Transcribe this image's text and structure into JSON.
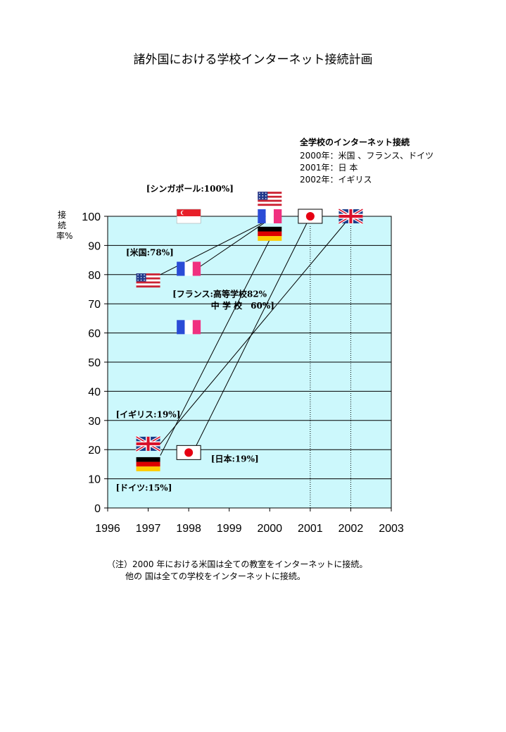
{
  "title": "諸外国における学校インターネット接続計画",
  "legend": {
    "title": "全学校のインターネット接続",
    "lines": [
      "2000年：米国 、フランス、ドイツ",
      "2001年：日 本",
      "2002年：イギリス"
    ]
  },
  "note": {
    "line1": "（注）2000 年における米国は全ての教室をインターネットに接続。",
    "line2": "他の 国は全ての学校をインターネットに接続。"
  },
  "colors": {
    "plot_background": "#ccf8fc",
    "usa_red": "#cc2233",
    "usa_blue": "#223a8c",
    "france_blue": "#2a4bd6",
    "france_red": "#f03080",
    "germany_red": "#dd0000",
    "germany_gold": "#ffcc00",
    "japan_red": "#e60012",
    "uk_blue": "#1a3d8a",
    "uk_red": "#d8102a",
    "singapore_red": "#e8202a"
  },
  "chart_data": {
    "type": "scatter",
    "title": "諸外国における学校インターネット接続計画",
    "xlabel": "",
    "ylabel": "接続率%",
    "xlim": [
      1996,
      2003
    ],
    "ylim": [
      0,
      100
    ],
    "xticks": [
      "1996",
      "1997",
      "1998",
      "1999",
      "2000",
      "2001",
      "2002",
      "2003"
    ],
    "yticks": [
      "0",
      "10",
      "20",
      "30",
      "40",
      "50",
      "60",
      "70",
      "80",
      "90",
      "100"
    ],
    "grid": "horizontal",
    "flags": [
      {
        "country": "singapore",
        "icon": "singapore-flag-icon",
        "x": 1998,
        "y": 100
      },
      {
        "country": "usa",
        "icon": "usa-flag-icon",
        "x": 1997,
        "y": 78
      },
      {
        "country": "france",
        "icon": "france-flag-icon",
        "x": 1998,
        "y": 82
      },
      {
        "country": "france",
        "icon": "france-flag-icon",
        "x": 1998,
        "y": 62
      },
      {
        "country": "uk",
        "icon": "uk-flag-icon",
        "x": 1997,
        "y": 22
      },
      {
        "country": "germany",
        "icon": "germany-flag-icon",
        "x": 1997,
        "y": 15
      },
      {
        "country": "japan",
        "icon": "japan-flag-icon",
        "x": 1998,
        "y": 19
      },
      {
        "country": "usa",
        "icon": "usa-flag-icon",
        "x": 2000,
        "y": 106
      },
      {
        "country": "france",
        "icon": "france-flag-icon",
        "x": 2000,
        "y": 100
      },
      {
        "country": "germany",
        "icon": "germany-flag-icon",
        "x": 2000,
        "y": 94
      },
      {
        "country": "japan",
        "icon": "japan-flag-icon",
        "x": 2001,
        "y": 100
      },
      {
        "country": "uk",
        "icon": "uk-flag-icon",
        "x": 2002,
        "y": 100
      }
    ],
    "connectors": [
      {
        "from": [
          1997.3,
          80
        ],
        "to": [
          2000,
          99
        ]
      },
      {
        "from": [
          1998.2,
          82
        ],
        "to": [
          2000,
          99
        ]
      },
      {
        "from": [
          1997.3,
          18
        ],
        "to": [
          2000,
          92
        ]
      },
      {
        "from": [
          1997.3,
          22
        ],
        "to": [
          2002,
          100
        ]
      },
      {
        "from": [
          1998.1,
          19
        ],
        "to": [
          2001,
          100
        ]
      }
    ],
    "dotted_lines": [
      {
        "x": 2001,
        "y_from": 0,
        "y_to": 97
      },
      {
        "x": 2002,
        "y_from": 0,
        "y_to": 97
      }
    ],
    "annotations": [
      {
        "text": "[シンガポール:100%]",
        "x": 1996.95,
        "y": 108.5
      },
      {
        "text": "[米国:78%]",
        "x": 1996.45,
        "y": 86.6
      },
      {
        "text": "[フランス:高等学校82%",
        "x": 1997.6,
        "y": 72.4
      },
      {
        "text": "中 学 校　60%]",
        "x": 1998.55,
        "y": 68.3
      },
      {
        "text": "[イギリス:19%]",
        "x": 1996.2,
        "y": 31.0
      },
      {
        "text": "[日本:19%]",
        "x": 1998.55,
        "y": 15.8
      },
      {
        "text": "[ドイツ:15%]",
        "x": 1996.2,
        "y": 5.9
      }
    ]
  }
}
